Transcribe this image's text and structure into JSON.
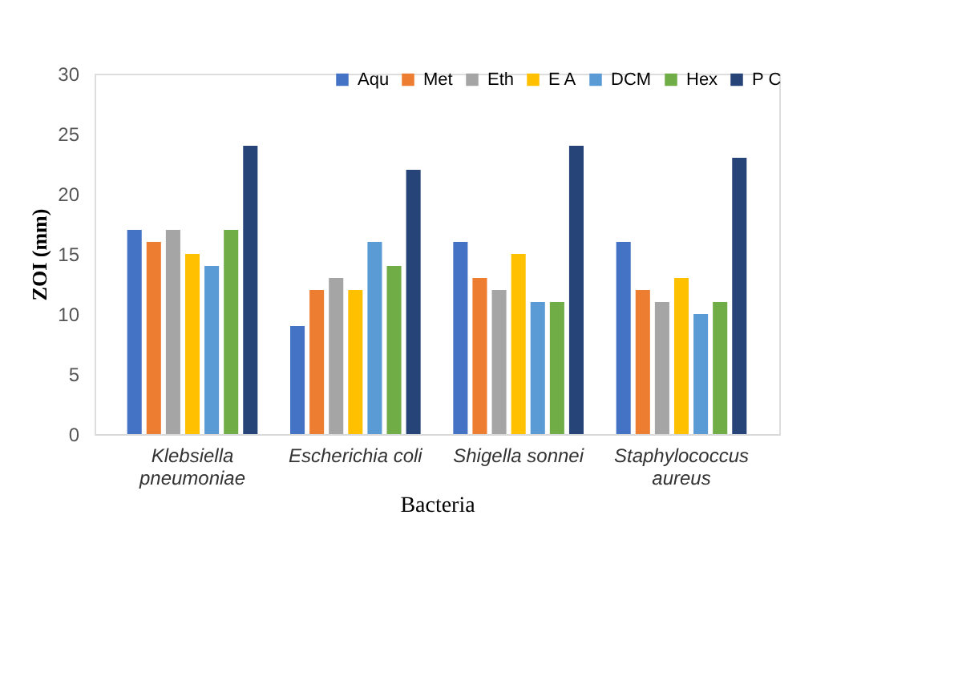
{
  "chart_data": {
    "type": "bar",
    "xlabel": "Bacteria",
    "ylabel": "ZOI (mm)",
    "categories": [
      "Klebsiella pneumoniae",
      "Escherichia coli",
      "Shigella sonnei",
      "Staphylococcus aureus"
    ],
    "series": [
      {
        "name": "Aqu",
        "color": "#4472c4",
        "values": [
          17,
          9,
          16,
          16
        ]
      },
      {
        "name": "Met",
        "color": "#ed7d31",
        "values": [
          16,
          12,
          13,
          12
        ]
      },
      {
        "name": "Eth",
        "color": "#a5a5a5",
        "values": [
          17,
          13,
          12,
          11
        ]
      },
      {
        "name": "E A",
        "color": "#ffc000",
        "values": [
          15,
          12,
          15,
          13
        ]
      },
      {
        "name": "DCM",
        "color": "#5b9bd5",
        "values": [
          14,
          16,
          11,
          10
        ]
      },
      {
        "name": "Hex",
        "color": "#70ad47",
        "values": [
          17,
          14,
          11,
          11
        ]
      },
      {
        "name": "P C",
        "color": "#264478",
        "values": [
          24,
          22,
          24,
          23
        ]
      }
    ],
    "ylim": [
      0,
      30
    ],
    "yticks": [
      0,
      5,
      10,
      15,
      20,
      25,
      30
    ],
    "grid": false,
    "legend": "top right"
  }
}
